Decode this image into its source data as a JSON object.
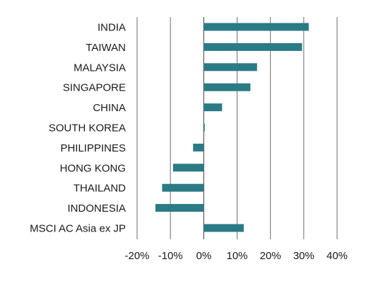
{
  "chart_data": {
    "type": "bar",
    "orientation": "horizontal",
    "title": "",
    "xlabel": "",
    "ylabel": "",
    "categories": [
      "INDIA",
      "TAIWAN",
      "MALAYSIA",
      "SINGAPORE",
      "CHINA",
      "SOUTH KOREA",
      "PHILIPPINES",
      "HONG KONG",
      "THAILAND",
      "INDONESIA",
      "MSCI AC Asia ex JP"
    ],
    "values": [
      31.5,
      29.5,
      16,
      14,
      5.5,
      0.3,
      -3.2,
      -9.2,
      -12.5,
      -14.5,
      12
    ],
    "value_unit": "%",
    "xlim": [
      -20,
      40
    ],
    "x_ticks": [
      -20,
      -10,
      0,
      10,
      20,
      30,
      40
    ],
    "x_tick_labels": [
      "-20%",
      "-10%",
      "0%",
      "10%",
      "20%",
      "30%",
      "40%"
    ],
    "grid": "vertical",
    "legend": "none",
    "bar_color": "#2a7b86",
    "grid_color": "#6e6e6e",
    "text_color": "#1a1a1a"
  }
}
